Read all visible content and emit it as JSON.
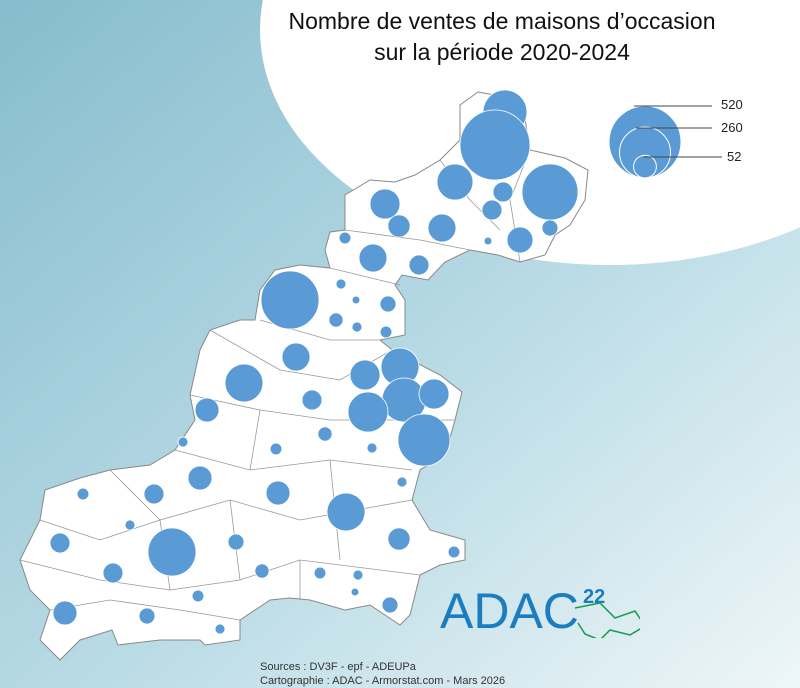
{
  "title_line1": "Nombre de ventes de maisons d’occasion",
  "title_line2": "sur la période 2020-2024",
  "legend": {
    "values": [
      520,
      260,
      52
    ],
    "labels": [
      "520",
      "260",
      "52"
    ]
  },
  "colors": {
    "symbol": "#5b9bd5",
    "commune_fill": "#ffffff",
    "commune_stroke": "#888888",
    "logo_blue": "#1a7cc1",
    "logo_green": "#1a9a4a"
  },
  "symbol_values": [
    194,
    491,
    130,
    315,
    40,
    40,
    90,
    49,
    79,
    68,
    26,
    6,
    14,
    79,
    40,
    10,
    337,
    6,
    26,
    20,
    10,
    14,
    79,
    90,
    145,
    194,
    90,
    160,
    271,
    145,
    58,
    40,
    20,
    10,
    14,
    10,
    58,
    58,
    145,
    10,
    14,
    40,
    10,
    40,
    231,
    26,
    49,
    40,
    20,
    14,
    14,
    14,
    10,
    6,
    26,
    58,
    26,
    10
  ],
  "sources": "Sources : DV3F - epf - ADEUPa",
  "cartography": "Cartographie : ADAC - Armorstat.com - Mars 2026",
  "logo": {
    "text": "ADAC",
    "superscript": "22"
  }
}
